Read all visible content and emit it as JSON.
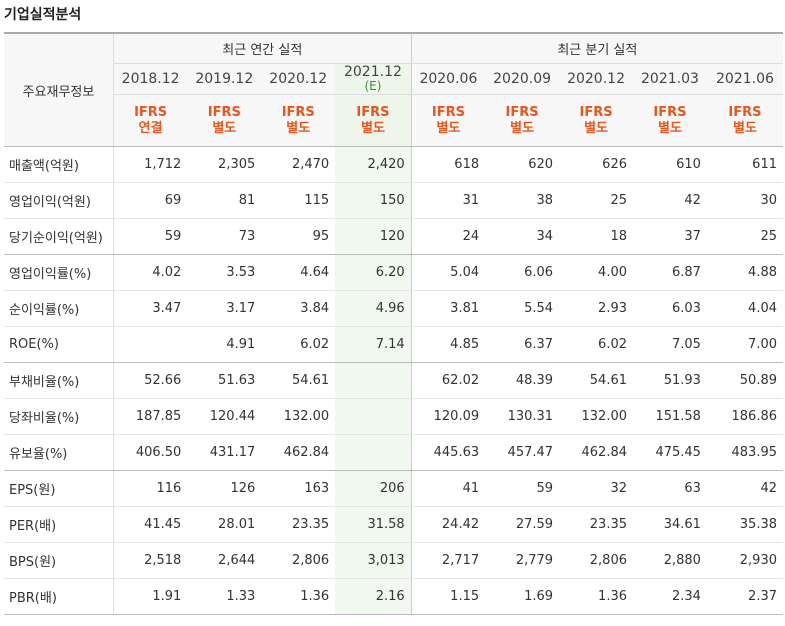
{
  "page_title": "기업실적분석",
  "table": {
    "row_header_label": "주요재무정보",
    "groups": {
      "annual": "최근 연간 실적",
      "quarterly": "최근 분기 실적"
    },
    "periods": [
      {
        "label": "2018.12",
        "sub": "",
        "std1": "IFRS",
        "std2": "연결"
      },
      {
        "label": "2019.12",
        "sub": "",
        "std1": "IFRS",
        "std2": "별도"
      },
      {
        "label": "2020.12",
        "sub": "",
        "std1": "IFRS",
        "std2": "별도"
      },
      {
        "label": "2021.12",
        "sub": "(E)",
        "std1": "IFRS",
        "std2": "별도"
      },
      {
        "label": "2020.06",
        "sub": "",
        "std1": "IFRS",
        "std2": "별도"
      },
      {
        "label": "2020.09",
        "sub": "",
        "std1": "IFRS",
        "std2": "별도"
      },
      {
        "label": "2020.12",
        "sub": "",
        "std1": "IFRS",
        "std2": "별도"
      },
      {
        "label": "2021.03",
        "sub": "",
        "std1": "IFRS",
        "std2": "별도"
      },
      {
        "label": "2021.06",
        "sub": "",
        "std1": "IFRS",
        "std2": "별도"
      }
    ],
    "rows": [
      {
        "label": "매출액(억원)",
        "values": [
          "1,712",
          "2,305",
          "2,470",
          "2,420",
          "618",
          "620",
          "626",
          "610",
          "611"
        ]
      },
      {
        "label": "영업이익(억원)",
        "values": [
          "69",
          "81",
          "115",
          "150",
          "31",
          "38",
          "25",
          "42",
          "30"
        ]
      },
      {
        "label": "당기순이익(억원)",
        "values": [
          "59",
          "73",
          "95",
          "120",
          "24",
          "34",
          "18",
          "37",
          "25"
        ]
      },
      {
        "label": "영업이익률(%)",
        "values": [
          "4.02",
          "3.53",
          "4.64",
          "6.20",
          "5.04",
          "6.06",
          "4.00",
          "6.87",
          "4.88"
        ]
      },
      {
        "label": "순이익률(%)",
        "values": [
          "3.47",
          "3.17",
          "3.84",
          "4.96",
          "3.81",
          "5.54",
          "2.93",
          "6.03",
          "4.04"
        ]
      },
      {
        "label": "ROE(%)",
        "values": [
          "",
          "4.91",
          "6.02",
          "7.14",
          "4.85",
          "6.37",
          "6.02",
          "7.05",
          "7.00"
        ]
      },
      {
        "label": "부채비율(%)",
        "values": [
          "52.66",
          "51.63",
          "54.61",
          "",
          "62.02",
          "48.39",
          "54.61",
          "51.93",
          "50.89"
        ]
      },
      {
        "label": "당좌비율(%)",
        "values": [
          "187.85",
          "120.44",
          "132.00",
          "",
          "120.09",
          "130.31",
          "132.00",
          "151.58",
          "186.86"
        ]
      },
      {
        "label": "유보율(%)",
        "values": [
          "406.50",
          "431.17",
          "462.84",
          "",
          "445.63",
          "457.47",
          "462.84",
          "475.45",
          "483.95"
        ]
      },
      {
        "label": "EPS(원)",
        "values": [
          "116",
          "126",
          "163",
          "206",
          "41",
          "59",
          "32",
          "63",
          "42"
        ]
      },
      {
        "label": "PER(배)",
        "values": [
          "41.45",
          "28.01",
          "23.35",
          "31.58",
          "24.42",
          "27.59",
          "23.35",
          "34.61",
          "35.38"
        ]
      },
      {
        "label": "BPS(원)",
        "values": [
          "2,518",
          "2,644",
          "2,806",
          "3,013",
          "2,717",
          "2,779",
          "2,806",
          "2,880",
          "2,930"
        ]
      },
      {
        "label": "PBR(배)",
        "values": [
          "1.91",
          "1.33",
          "1.36",
          "2.16",
          "1.15",
          "1.69",
          "1.36",
          "2.34",
          "2.37"
        ]
      }
    ],
    "colors": {
      "standard_text": "#e8561f",
      "estimate_bg": "#f1f8ef",
      "estimate_text": "#3a8f3a"
    }
  }
}
